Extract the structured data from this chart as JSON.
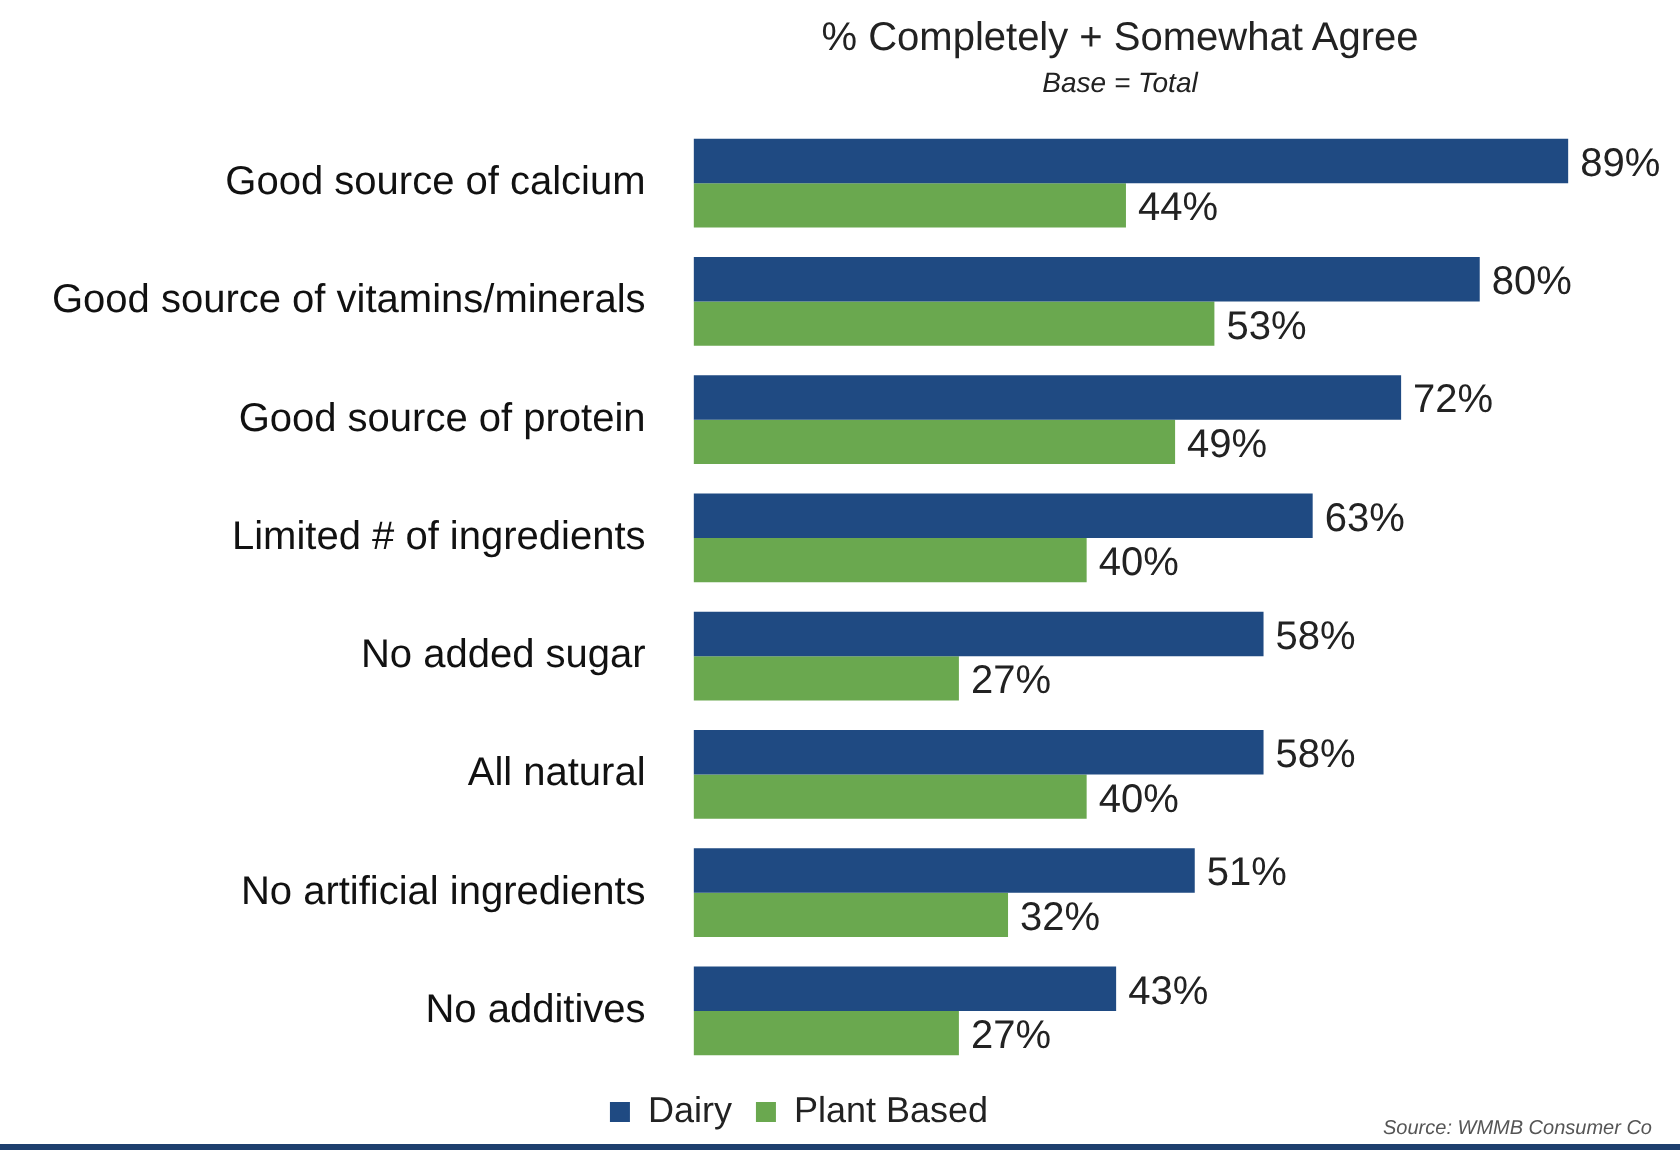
{
  "chart_data": {
    "type": "bar",
    "orientation": "horizontal",
    "title": "% Completely + Somewhat Agree",
    "subtitle": "Base = Total",
    "categories": [
      "Good source of calcium",
      "Good source of vitamins/minerals",
      "Good source of protein",
      "Limited # of ingredients",
      "No added sugar",
      "All natural",
      "No artificial ingredients",
      "No additives"
    ],
    "series": [
      {
        "name": "Dairy",
        "color": "#1f4a82",
        "values": [
          89,
          80,
          72,
          63,
          58,
          58,
          51,
          43
        ],
        "value_labels": [
          "89%",
          "80%",
          "72%",
          "63%",
          "58%",
          "58%",
          "51%",
          "43%"
        ]
      },
      {
        "name": "Plant Based",
        "color": "#6aa84f",
        "values": [
          44,
          53,
          49,
          40,
          27,
          40,
          32,
          27
        ],
        "value_labels": [
          "44%",
          "53%",
          "49%",
          "40%",
          "27%",
          "40%",
          "32%",
          "27%"
        ]
      }
    ],
    "legend": "bottom",
    "tick_labels": "y",
    "annotations": [
      "Source: WMMB Consumer Co"
    ]
  }
}
